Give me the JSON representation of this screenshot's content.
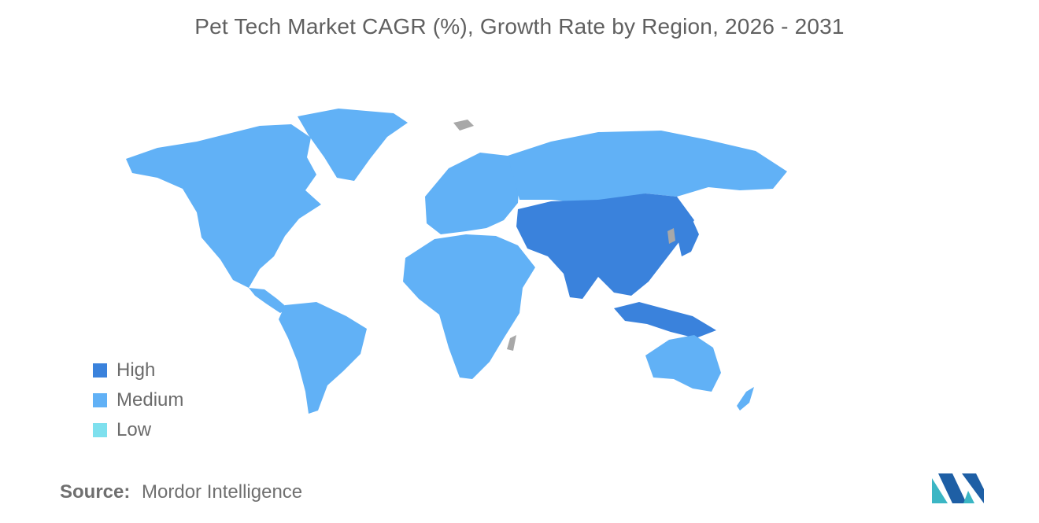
{
  "title": "Pet Tech Market CAGR (%), Growth Rate by Region, 2026 - 2031",
  "legend": [
    {
      "label": "High",
      "color": "#3a82dc"
    },
    {
      "label": "Medium",
      "color": "#61b1f6"
    },
    {
      "label": "Low",
      "color": "#7ee0ee"
    }
  ],
  "map": {
    "no_data_color": "#a8a8a8",
    "regions": [
      {
        "name": "North America",
        "level": "Medium"
      },
      {
        "name": "South America",
        "level": "Medium"
      },
      {
        "name": "Europe",
        "level": "Medium"
      },
      {
        "name": "Middle East and Africa",
        "level": "Medium"
      },
      {
        "name": "Asia-Pacific",
        "level": "High"
      },
      {
        "name": "Australia and New Zealand",
        "level": "Medium"
      }
    ]
  },
  "source": {
    "label": "Source:",
    "value": "Mordor Intelligence"
  },
  "logo_icon": "mordor-intelligence-logo-icon"
}
